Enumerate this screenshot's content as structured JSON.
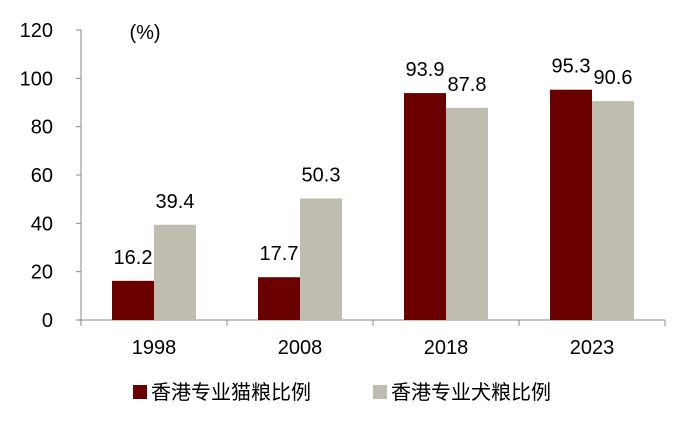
{
  "chart_data": {
    "type": "bar",
    "title": "",
    "unit_label": "(%)",
    "categories": [
      "1998",
      "2008",
      "2018",
      "2023"
    ],
    "series": [
      {
        "name": "香港专业猫粮比例",
        "color": "#6b0000",
        "values": [
          16.2,
          17.7,
          93.9,
          95.3
        ]
      },
      {
        "name": "香港专业犬粮比例",
        "color": "#bfbdaf",
        "values": [
          39.4,
          50.3,
          87.8,
          90.6
        ]
      }
    ],
    "ylim": [
      0,
      120
    ],
    "yticks": [
      0,
      20,
      40,
      60,
      80,
      100,
      120
    ],
    "xlabel": "",
    "ylabel": "",
    "grid": false,
    "legend_position": "bottom"
  }
}
